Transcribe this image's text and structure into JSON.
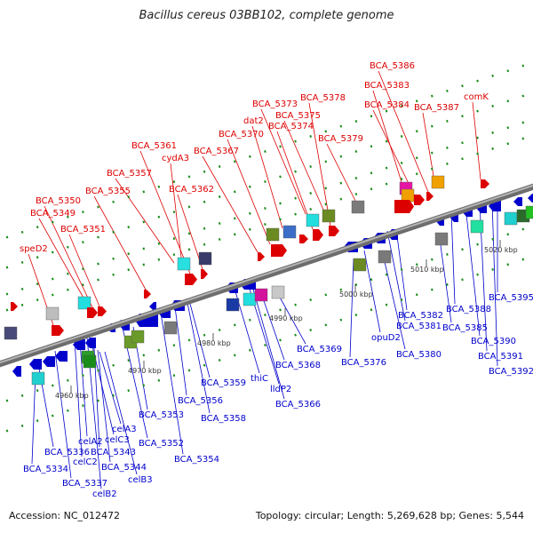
{
  "title": "Bacillus cereus 03BB102, complete genome",
  "footer": {
    "accession": "Accession: NC_012472",
    "summary": "Topology: circular; Length: 5,269,628 bp; Genes: 5,544"
  },
  "colors": {
    "forward": "#dd0000",
    "reverse": "#0000cc",
    "backbone": "#8c8c8c"
  },
  "scale_labels": [
    "4960 kbp",
    "4970 kbp",
    "4980 kbp",
    "4990 kbp",
    "5000 kbp",
    "5010 kbp",
    "5020 kbp"
  ],
  "forward_labels": [
    "speD2",
    "BCA_5349",
    "BCA_5350",
    "BCA_5351",
    "BCA_5355",
    "BCA_5357",
    "cydA3",
    "BCA_5361",
    "BCA_5362",
    "BCA_5367",
    "BCA_5370",
    "dat2",
    "BCA_5373",
    "BCA_5374",
    "BCA_5375",
    "BCA_5378",
    "BCA_5379",
    "BCA_5383",
    "BCA_5384",
    "BCA_5386",
    "BCA_5387",
    "comK"
  ],
  "reverse_labels": [
    "BCA_5334",
    "BCA_5336",
    "BCA_5337",
    "celC2",
    "celA2",
    "celB2",
    "celC3",
    "BCA_5343",
    "BCA_5344",
    "celA3",
    "celB3",
    "BCA_5352",
    "BCA_5353",
    "BCA_5354",
    "BCA_5356",
    "BCA_5358",
    "BCA_5359",
    "thiC",
    "lldP2",
    "BCA_5366",
    "BCA_5368",
    "BCA_5369",
    "BCA_5376",
    "opuD2",
    "BCA_5380",
    "BCA_5381",
    "BCA_5382",
    "BCA_5385",
    "BCA_5388",
    "BCA_5390",
    "BCA_5391",
    "BCA_5392",
    "BCA_5395"
  ]
}
